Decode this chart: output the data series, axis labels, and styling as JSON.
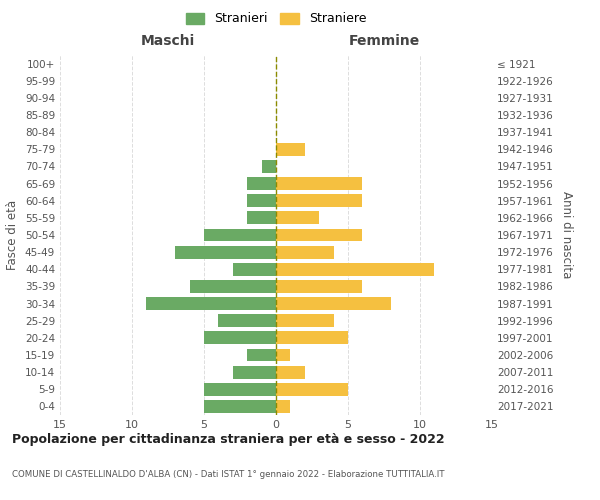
{
  "age_groups": [
    "0-4",
    "5-9",
    "10-14",
    "15-19",
    "20-24",
    "25-29",
    "30-34",
    "35-39",
    "40-44",
    "45-49",
    "50-54",
    "55-59",
    "60-64",
    "65-69",
    "70-74",
    "75-79",
    "80-84",
    "85-89",
    "90-94",
    "95-99",
    "100+"
  ],
  "birth_years": [
    "2017-2021",
    "2012-2016",
    "2007-2011",
    "2002-2006",
    "1997-2001",
    "1992-1996",
    "1987-1991",
    "1982-1986",
    "1977-1981",
    "1972-1976",
    "1967-1971",
    "1962-1966",
    "1957-1961",
    "1952-1956",
    "1947-1951",
    "1942-1946",
    "1937-1941",
    "1932-1936",
    "1927-1931",
    "1922-1926",
    "≤ 1921"
  ],
  "maschi": [
    5,
    5,
    3,
    2,
    5,
    4,
    9,
    6,
    3,
    7,
    5,
    2,
    2,
    2,
    1,
    0,
    0,
    0,
    0,
    0,
    0
  ],
  "femmine": [
    1,
    5,
    2,
    1,
    5,
    4,
    8,
    6,
    11,
    4,
    6,
    3,
    6,
    6,
    0,
    2,
    0,
    0,
    0,
    0,
    0
  ],
  "maschi_color": "#6aaa64",
  "femmine_color": "#f5c040",
  "title": "Popolazione per cittadinanza straniera per età e sesso - 2022",
  "subtitle": "COMUNE DI CASTELLINALDO D'ALBA (CN) - Dati ISTAT 1° gennaio 2022 - Elaborazione TUTTITALIA.IT",
  "xlabel_left": "Maschi",
  "xlabel_right": "Femmine",
  "ylabel_left": "Fasce di età",
  "ylabel_right": "Anni di nascita",
  "legend_maschi": "Stranieri",
  "legend_femmine": "Straniere",
  "xlim": 15,
  "background_color": "#ffffff",
  "grid_color": "#dddddd"
}
